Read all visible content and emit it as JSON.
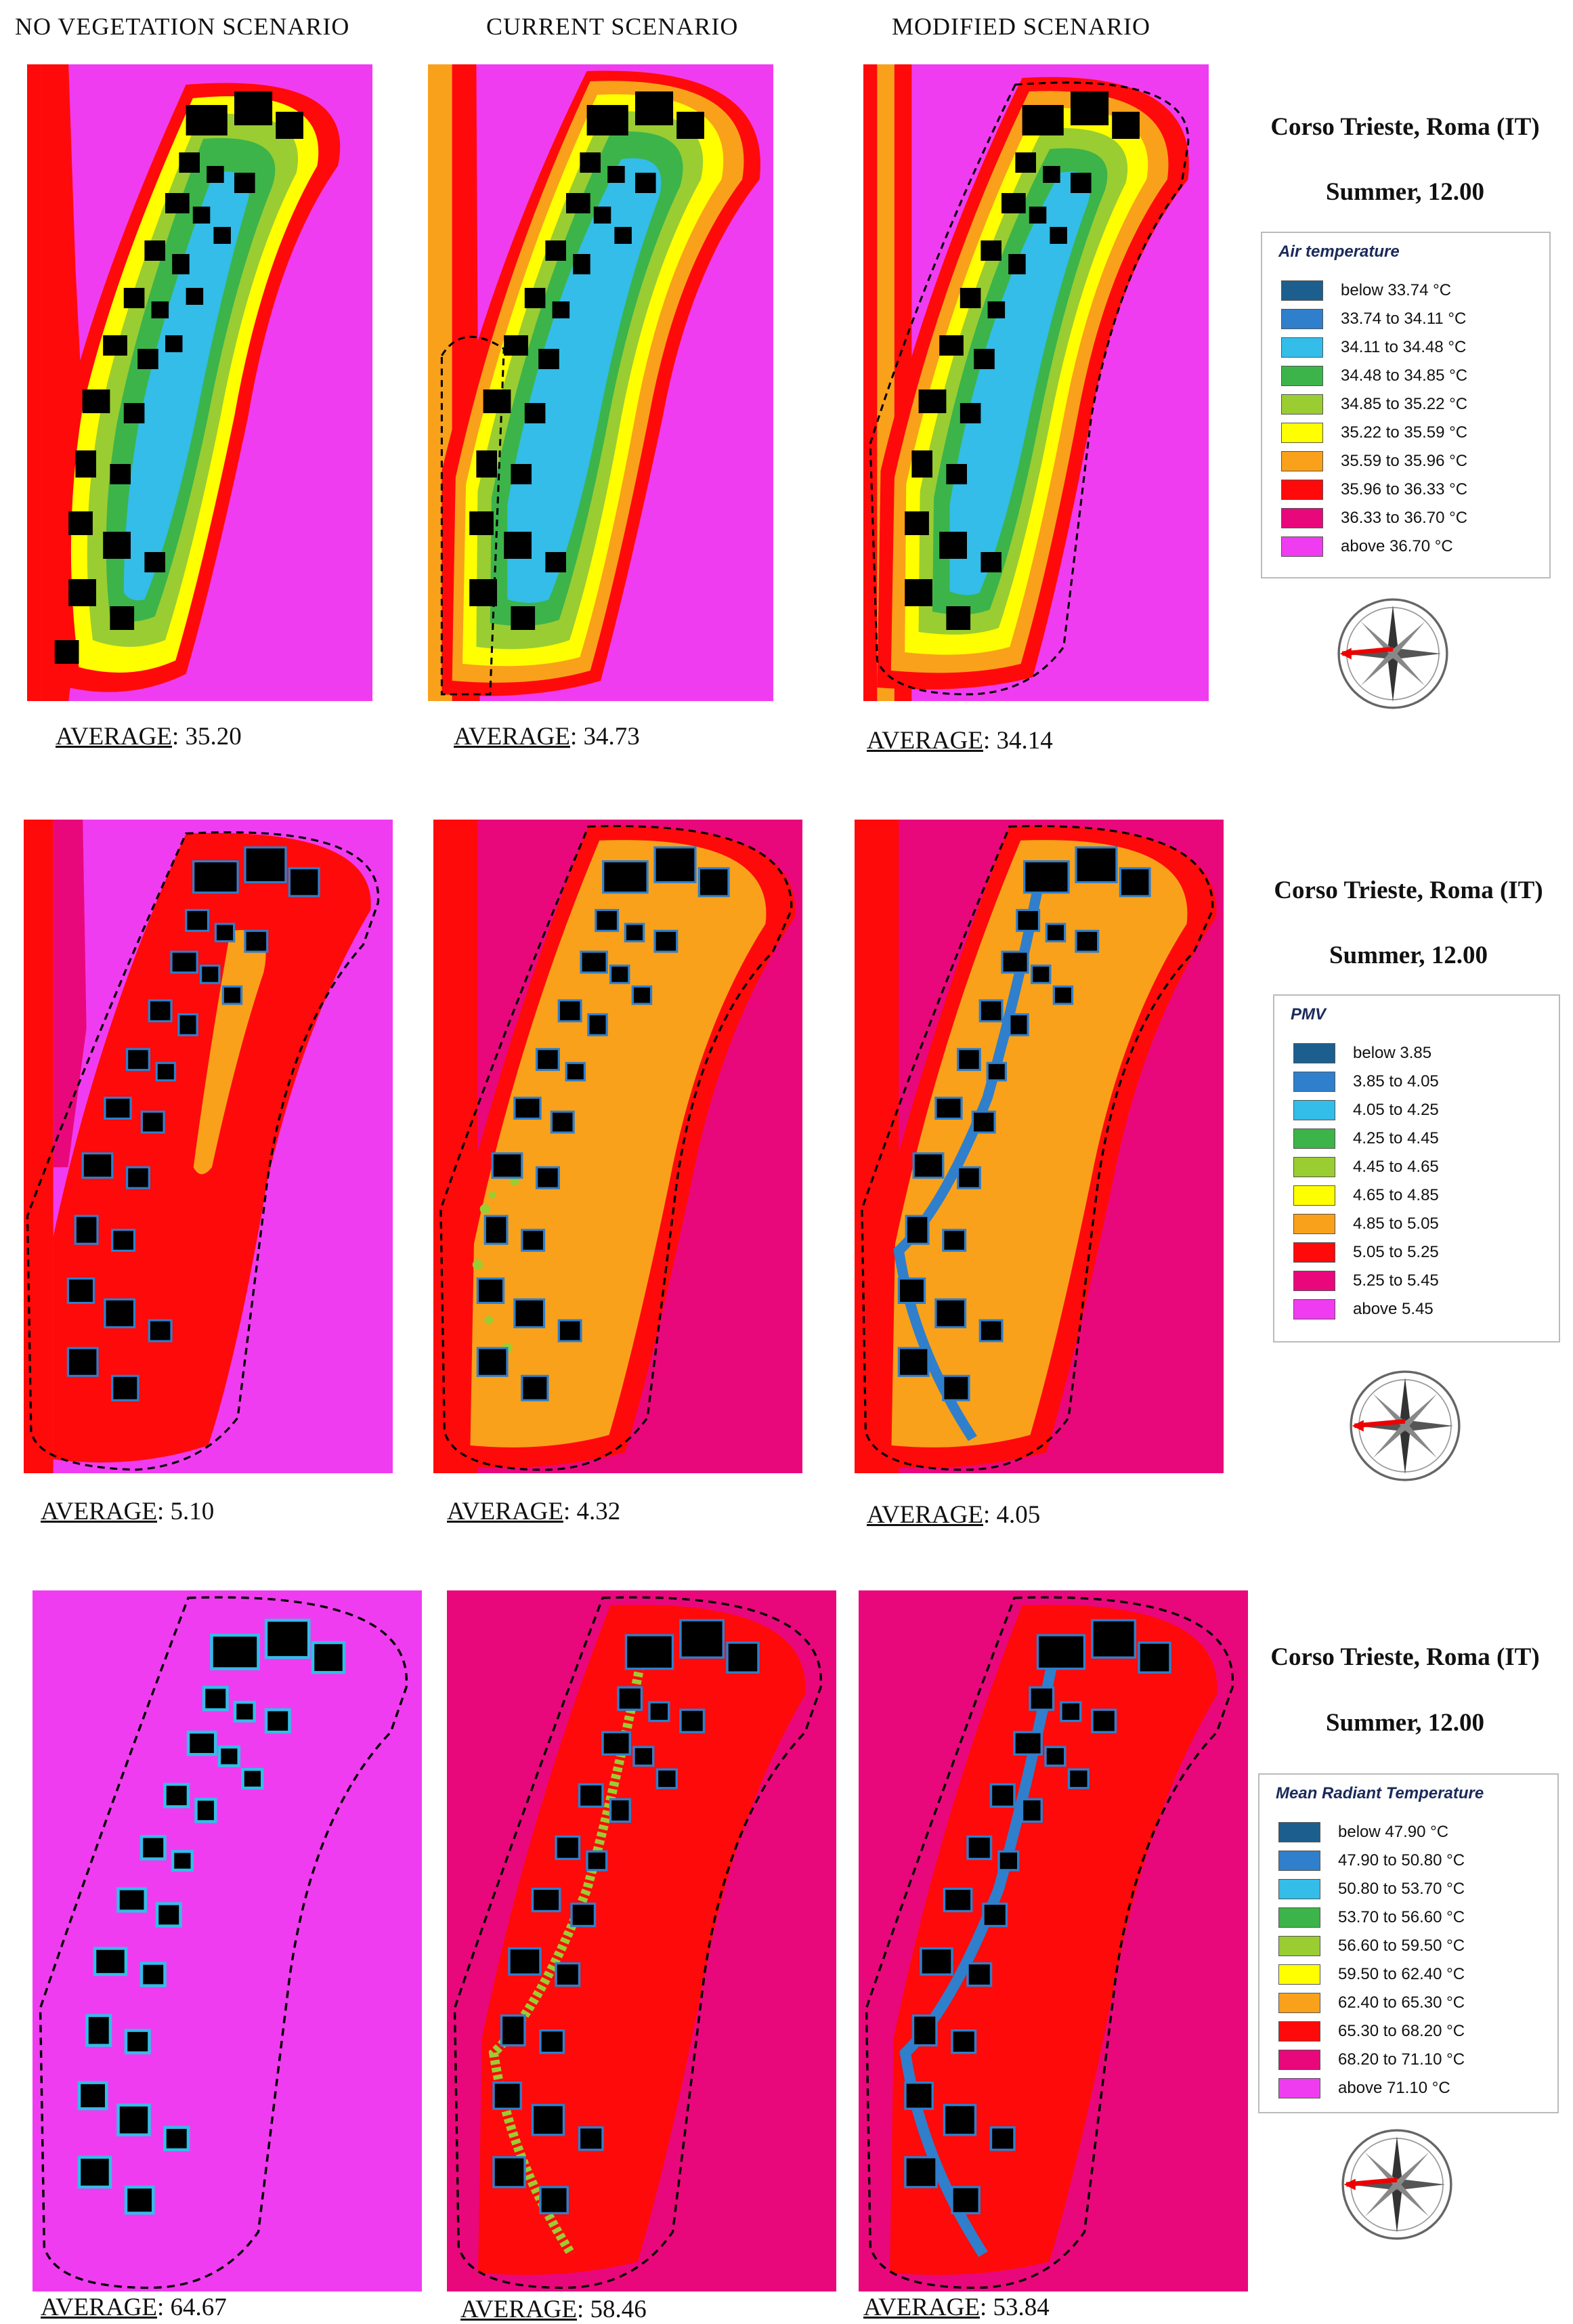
{
  "columns": [
    "NO VEGETATION SCENARIO",
    "CURRENT SCENARIO",
    "MODIFIED SCENARIO"
  ],
  "site": "Corso Trieste, Roma (IT)",
  "season_time": "Summer, 12.00",
  "panels": [
    {
      "legend_title": "Air temperature",
      "averages": [
        "35.20",
        "34.73",
        "34.14"
      ],
      "legend": [
        {
          "label": "below 33.74 °C",
          "color": "#1c5f8e"
        },
        {
          "label": "33.74 to 34.11 °C",
          "color": "#2f7fcc"
        },
        {
          "label": "34.11 to 34.48 °C",
          "color": "#33bde8"
        },
        {
          "label": "34.48 to 34.85 °C",
          "color": "#3cb44a"
        },
        {
          "label": "34.85 to 35.22 °C",
          "color": "#9acd32"
        },
        {
          "label": "35.22 to 35.59 °C",
          "color": "#ffff00"
        },
        {
          "label": "35.59 to 35.96 °C",
          "color": "#f9a11b"
        },
        {
          "label": "35.96 to 36.33 °C",
          "color": "#ff0a0a"
        },
        {
          "label": "36.33 to 36.70 °C",
          "color": "#e8087c"
        },
        {
          "label": "above 36.70 °C",
          "color": "#f03cf0"
        }
      ]
    },
    {
      "legend_title": "PMV",
      "averages": [
        "5.10",
        "4.32",
        "4.05"
      ],
      "legend": [
        {
          "label": "below 3.85",
          "color": "#1c5f8e"
        },
        {
          "label": "3.85 to 4.05",
          "color": "#2f7fcc"
        },
        {
          "label": "4.05 to 4.25",
          "color": "#33bde8"
        },
        {
          "label": "4.25 to 4.45",
          "color": "#3cb44a"
        },
        {
          "label": "4.45 to 4.65",
          "color": "#9acd32"
        },
        {
          "label": "4.65 to 4.85",
          "color": "#ffff00"
        },
        {
          "label": "4.85 to 5.05",
          "color": "#f9a11b"
        },
        {
          "label": "5.05 to 5.25",
          "color": "#ff0a0a"
        },
        {
          "label": "5.25 to 5.45",
          "color": "#e8087c"
        },
        {
          "label": "above 5.45",
          "color": "#f03cf0"
        }
      ]
    },
    {
      "legend_title": "Mean Radiant Temperature",
      "averages": [
        "64.67",
        "58.46",
        "53.84"
      ],
      "legend": [
        {
          "label": "below 47.90 °C",
          "color": "#1c5f8e"
        },
        {
          "label": "47.90 to 50.80 °C",
          "color": "#2f7fcc"
        },
        {
          "label": "50.80 to 53.70 °C",
          "color": "#33bde8"
        },
        {
          "label": "53.70 to 56.60 °C",
          "color": "#3cb44a"
        },
        {
          "label": "56.60 to 59.50 °C",
          "color": "#9acd32"
        },
        {
          "label": "59.50 to 62.40 °C",
          "color": "#ffff00"
        },
        {
          "label": "62.40 to 65.30 °C",
          "color": "#f9a11b"
        },
        {
          "label": "65.30 to 68.20 °C",
          "color": "#ff0a0a"
        },
        {
          "label": "68.20 to 71.10 °C",
          "color": "#e8087c"
        },
        {
          "label": "above 71.10 °C",
          "color": "#f03cf0"
        }
      ]
    }
  ],
  "average_label": "AVERAGE",
  "icons": {
    "compass": "compass-rose-icon"
  }
}
